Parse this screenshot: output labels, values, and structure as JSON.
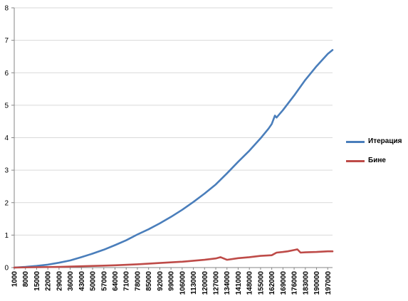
{
  "chart_data": {
    "type": "line",
    "title": "",
    "xlabel": "",
    "ylabel": "",
    "ylim": [
      0,
      8
    ],
    "y_ticks": [
      0,
      1,
      2,
      3,
      4,
      5,
      6,
      7,
      8
    ],
    "x_range": [
      1000,
      200000
    ],
    "x_tick_labels": [
      "1000",
      "8000",
      "15000",
      "22000",
      "29000",
      "36000",
      "43000",
      "50000",
      "57000",
      "64000",
      "71000",
      "78000",
      "85000",
      "92000",
      "99000",
      "106000",
      "113000",
      "120000",
      "127000",
      "134000",
      "141000",
      "148000",
      "155000",
      "162000",
      "169000",
      "176000",
      "183000",
      "190000",
      "197000"
    ],
    "grid": "horizontal",
    "legend_position": "right",
    "series": [
      {
        "name": "Итерация",
        "color": "#4A7EBB",
        "x": [
          1000,
          8000,
          15000,
          22000,
          29000,
          36000,
          43000,
          50000,
          57000,
          64000,
          71000,
          78000,
          85000,
          92000,
          99000,
          106000,
          113000,
          120000,
          127000,
          134000,
          141000,
          148000,
          155000,
          160000,
          162000,
          164000,
          165000,
          169000,
          176000,
          183000,
          190000,
          197000,
          200000
        ],
        "values": [
          0.0,
          0.02,
          0.05,
          0.09,
          0.15,
          0.22,
          0.32,
          0.43,
          0.55,
          0.69,
          0.84,
          1.02,
          1.18,
          1.36,
          1.56,
          1.78,
          2.02,
          2.28,
          2.56,
          2.9,
          3.26,
          3.6,
          3.98,
          4.28,
          4.42,
          4.68,
          4.62,
          4.85,
          5.3,
          5.78,
          6.2,
          6.58,
          6.7
        ]
      },
      {
        "name": "Бине",
        "color": "#BE4B48",
        "x": [
          1000,
          15000,
          29000,
          43000,
          57000,
          64000,
          78000,
          92000,
          106000,
          120000,
          127000,
          130000,
          134000,
          141000,
          148000,
          155000,
          162000,
          165000,
          169000,
          172000,
          176000,
          178000,
          180000,
          183000,
          190000,
          197000,
          200000
        ],
        "values": [
          0.0,
          0.01,
          0.02,
          0.04,
          0.06,
          0.07,
          0.1,
          0.14,
          0.18,
          0.24,
          0.28,
          0.32,
          0.24,
          0.29,
          0.32,
          0.36,
          0.38,
          0.46,
          0.48,
          0.5,
          0.54,
          0.56,
          0.46,
          0.47,
          0.48,
          0.5,
          0.5
        ]
      }
    ]
  }
}
